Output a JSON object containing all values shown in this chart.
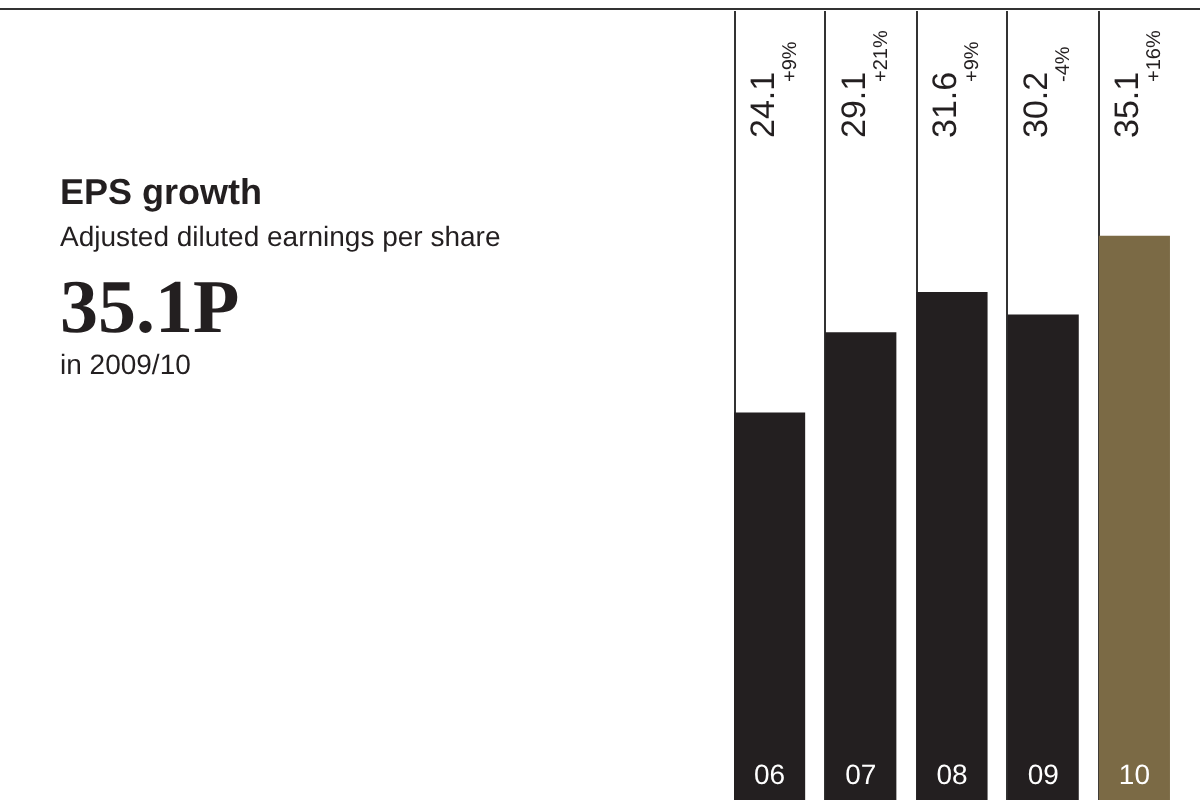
{
  "chart_data": {
    "type": "bar",
    "title": "EPS growth",
    "subtitle": "Adjusted diluted earnings per share",
    "categories": [
      "06",
      "07",
      "08",
      "09",
      "10"
    ],
    "values": [
      24.1,
      29.1,
      31.6,
      30.2,
      35.1
    ],
    "colors": [
      "#231f20",
      "#231f20",
      "#231f20",
      "#231f20",
      "#7b6a45"
    ],
    "data_labels": true,
    "grid": "x",
    "annotations": [
      "35.1P",
      "in 2009/10",
      "+9%",
      "+21%",
      "+9%",
      "-4%",
      "+16%"
    ]
  }
}
